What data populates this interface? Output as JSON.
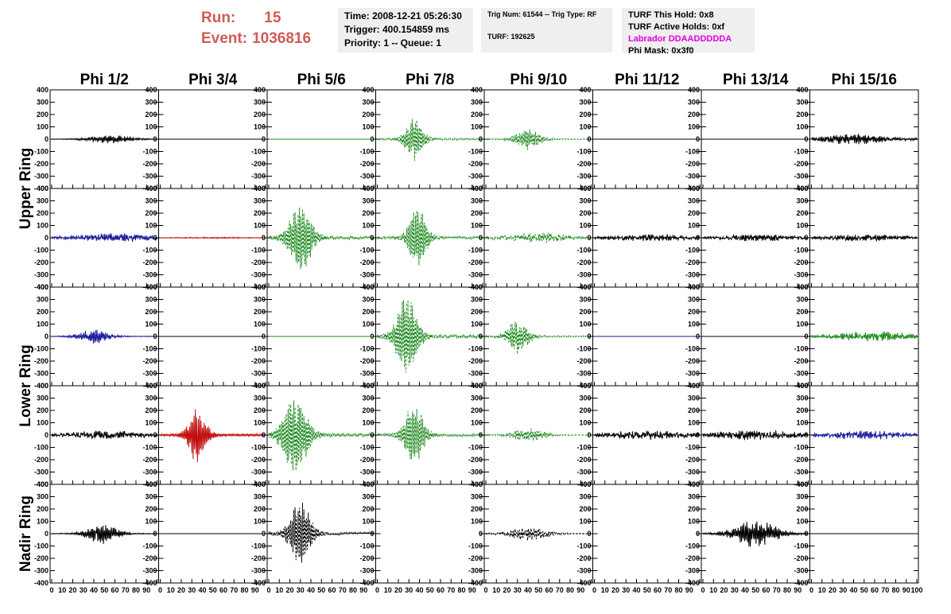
{
  "header": {
    "run_label": "Run:",
    "run_value": "15",
    "event_label": "Event:",
    "event_value": "1036816",
    "time": "Time: 2008-12-21 05:26:30",
    "trigger": "Trigger: 400.154859 ms",
    "priority": "Priority: 1 -- Queue: 1",
    "trig_num": "Trig Num: 61544 -- Trig Type: RF",
    "turf": "TURF: 192625",
    "turf_this_hold": "TURF This Hold: 0x8",
    "turf_active_holds": "TURF Active Holds: 0xf",
    "labrador": "Labrador DDAADDDDDA",
    "phi_mask": "Phi Mask: 0x3f0"
  },
  "colors": {
    "run_text": "#cf5b57",
    "labrador_text": "#e000e0",
    "info_bg": "#efefef",
    "black": "#000000",
    "blue": "#1a1a9a",
    "green": "#228b22",
    "red": "#c01010"
  },
  "ring_labels": [
    "Upper Ring",
    "Lower Ring",
    "Nadir Ring"
  ],
  "chart_data": {
    "type": "line",
    "columns": [
      "Phi 1/2",
      "Phi 3/4",
      "Phi 5/6",
      "Phi 7/8",
      "Phi 9/10",
      "Phi 11/12",
      "Phi 13/14",
      "Phi 15/16"
    ],
    "rows": 5,
    "xlim": [
      0,
      100
    ],
    "ylim": [
      -400,
      400
    ],
    "x_ticks": [
      0,
      10,
      20,
      30,
      40,
      50,
      60,
      70,
      80,
      90,
      100
    ],
    "y_ticks": [
      -400,
      -300,
      -200,
      -100,
      0,
      100,
      200,
      300,
      400
    ],
    "panels": [
      [
        {
          "color": "black",
          "style": "solid",
          "amp": 35,
          "peak": 55,
          "width": 30,
          "noise": 0.4,
          "seed": 11
        },
        {
          "color": "black",
          "style": "solid",
          "amp": 0,
          "peak": 50,
          "width": 30,
          "noise": 0,
          "seed": 12
        },
        {
          "color": "green",
          "style": "solid",
          "amp": 0,
          "peak": 50,
          "width": 30,
          "noise": 0,
          "seed": 13
        },
        {
          "color": "green",
          "style": "dashed",
          "amp": 180,
          "peak": 35,
          "width": 12,
          "noise": 0.2,
          "seed": 14
        },
        {
          "color": "green",
          "style": "dashed",
          "amp": 90,
          "peak": 40,
          "width": 16,
          "noise": 0.25,
          "seed": 15
        },
        {
          "color": "black",
          "style": "solid",
          "amp": 0,
          "peak": 50,
          "width": 30,
          "noise": 0,
          "seed": 16
        },
        {
          "color": "black",
          "style": "solid",
          "amp": 0,
          "peak": 50,
          "width": 30,
          "noise": 0,
          "seed": 17
        },
        {
          "color": "black",
          "style": "solid",
          "amp": 50,
          "peak": 40,
          "width": 25,
          "noise": 0.5,
          "seed": 18
        }
      ],
      [
        {
          "color": "blue",
          "style": "solid",
          "amp": 40,
          "peak": 60,
          "width": 35,
          "noise": 0.5,
          "seed": 21
        },
        {
          "color": "red",
          "style": "solid",
          "amp": 6,
          "peak": 50,
          "width": 40,
          "noise": 0.5,
          "seed": 22
        },
        {
          "color": "green",
          "style": "dashed",
          "amp": 300,
          "peak": 30,
          "width": 15,
          "noise": 0.15,
          "seed": 23
        },
        {
          "color": "green",
          "style": "dashed",
          "amp": 260,
          "peak": 38,
          "width": 12,
          "noise": 0.2,
          "seed": 24
        },
        {
          "color": "green",
          "style": "dashed",
          "amp": 45,
          "peak": 50,
          "width": 30,
          "noise": 0.5,
          "seed": 25
        },
        {
          "color": "black",
          "style": "solid",
          "amp": 30,
          "peak": 50,
          "width": 40,
          "noise": 0.6,
          "seed": 26
        },
        {
          "color": "black",
          "style": "solid",
          "amp": 30,
          "peak": 50,
          "width": 40,
          "noise": 0.6,
          "seed": 27
        },
        {
          "color": "black",
          "style": "solid",
          "amp": 30,
          "peak": 50,
          "width": 40,
          "noise": 0.6,
          "seed": 28
        }
      ],
      [
        {
          "color": "blue",
          "style": "solid",
          "amp": 60,
          "peak": 40,
          "width": 22,
          "noise": 0.4,
          "seed": 31
        },
        {
          "color": "black",
          "style": "solid",
          "amp": 0,
          "peak": 50,
          "width": 30,
          "noise": 0,
          "seed": 32
        },
        {
          "color": "green",
          "style": "solid",
          "amp": 0,
          "peak": 50,
          "width": 30,
          "noise": 0,
          "seed": 33
        },
        {
          "color": "green",
          "style": "dashed",
          "amp": 330,
          "peak": 28,
          "width": 14,
          "noise": 0.15,
          "seed": 34
        },
        {
          "color": "green",
          "style": "dashed",
          "amp": 150,
          "peak": 30,
          "width": 14,
          "noise": 0.25,
          "seed": 35
        },
        {
          "color": "blue",
          "style": "solid",
          "amp": 0,
          "peak": 50,
          "width": 30,
          "noise": 0,
          "seed": 36
        },
        {
          "color": "black",
          "style": "solid",
          "amp": 0,
          "peak": 50,
          "width": 30,
          "noise": 0,
          "seed": 37
        },
        {
          "color": "green",
          "style": "solid",
          "amp": 45,
          "peak": 60,
          "width": 35,
          "noise": 0.5,
          "seed": 38
        }
      ],
      [
        {
          "color": "black",
          "style": "solid",
          "amp": 40,
          "peak": 50,
          "width": 40,
          "noise": 0.6,
          "seed": 41
        },
        {
          "color": "red",
          "style": "solid",
          "amp": 240,
          "peak": 35,
          "width": 12,
          "noise": 0.2,
          "seed": 42
        },
        {
          "color": "green",
          "style": "dashed",
          "amp": 340,
          "peak": 25,
          "width": 16,
          "noise": 0.15,
          "seed": 43
        },
        {
          "color": "green",
          "style": "dashed",
          "amp": 270,
          "peak": 35,
          "width": 13,
          "noise": 0.2,
          "seed": 44
        },
        {
          "color": "green",
          "style": "dashed",
          "amp": 60,
          "peak": 40,
          "width": 22,
          "noise": 0.4,
          "seed": 45
        },
        {
          "color": "black",
          "style": "solid",
          "amp": 40,
          "peak": 50,
          "width": 40,
          "noise": 0.6,
          "seed": 46
        },
        {
          "color": "black",
          "style": "solid",
          "amp": 45,
          "peak": 50,
          "width": 40,
          "noise": 0.6,
          "seed": 47
        },
        {
          "color": "blue",
          "style": "solid",
          "amp": 40,
          "peak": 50,
          "width": 40,
          "noise": 0.6,
          "seed": 48
        }
      ],
      [
        {
          "color": "black",
          "style": "solid",
          "amp": 90,
          "peak": 48,
          "width": 20,
          "noise": 0.35,
          "seed": 51
        },
        {
          "color": "black",
          "style": "solid",
          "amp": 0,
          "peak": 50,
          "width": 30,
          "noise": 0,
          "seed": 52
        },
        {
          "color": "black",
          "style": "dashed",
          "amp": 280,
          "peak": 30,
          "width": 14,
          "noise": 0.2,
          "seed": 53
        },
        null,
        {
          "color": "black",
          "style": "dashed",
          "amp": 60,
          "peak": 40,
          "width": 26,
          "noise": 0.4,
          "seed": 55
        },
        null,
        {
          "color": "black",
          "style": "solid",
          "amp": 120,
          "peak": 50,
          "width": 28,
          "noise": 0.35,
          "seed": 57
        },
        {
          "color": "black",
          "style": "solid",
          "amp": 0,
          "peak": 50,
          "width": 30,
          "noise": 0,
          "seed": 58
        }
      ]
    ]
  }
}
